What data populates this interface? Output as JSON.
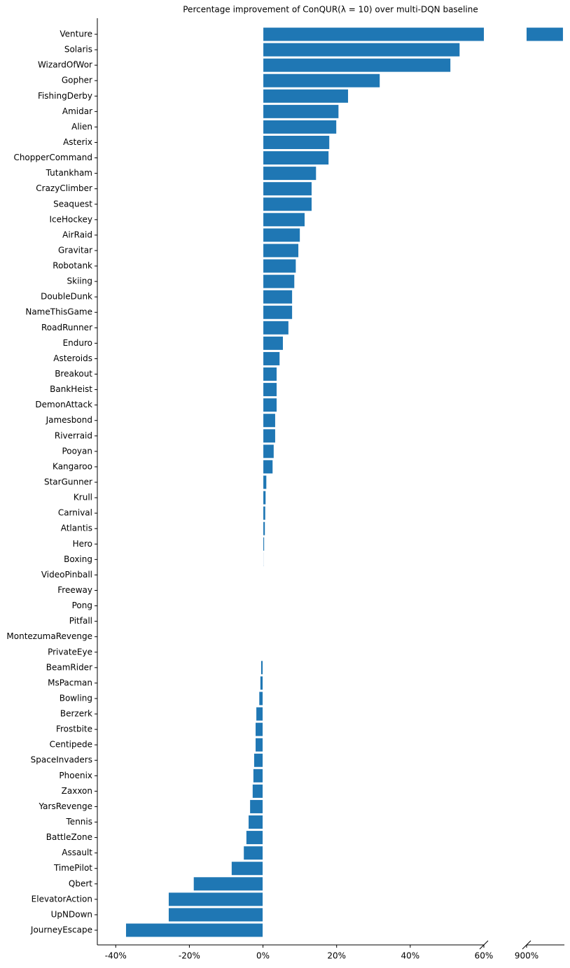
{
  "chart_data": {
    "type": "barh",
    "title": "Percentage improvement of ConQUR(λ = 10) over multi-DQN baseline",
    "categories": [
      "Venture",
      "Solaris",
      "WizardOfWor",
      "Gopher",
      "FishingDerby",
      "Amidar",
      "Alien",
      "Asterix",
      "ChopperCommand",
      "Tutankham",
      "CrazyClimber",
      "Seaquest",
      "IceHockey",
      "AirRaid",
      "Gravitar",
      "Robotank",
      "Skiing",
      "DoubleDunk",
      "NameThisGame",
      "RoadRunner",
      "Enduro",
      "Asteroids",
      "Breakout",
      "BankHeist",
      "DemonAttack",
      "Jamesbond",
      "Riverraid",
      "Pooyan",
      "Kangaroo",
      "StarGunner",
      "Krull",
      "Carnival",
      "Atlantis",
      "Hero",
      "Boxing",
      "VideoPinball",
      "Freeway",
      "Pong",
      "Pitfall",
      "MontezumaRevenge",
      "PrivateEye",
      "BeamRider",
      "MsPacman",
      "Bowling",
      "Berzerk",
      "Frostbite",
      "Centipede",
      "SpaceInvaders",
      "Phoenix",
      "Zaxxon",
      "YarsRevenge",
      "Tennis",
      "BattleZone",
      "Assault",
      "TimePilot",
      "Qbert",
      "ElevatorAction",
      "UpNDown",
      "JourneyEscape"
    ],
    "values": [
      910,
      53.5,
      51,
      31.8,
      23.2,
      20.6,
      20,
      18.1,
      17.9,
      14.5,
      13.3,
      13.3,
      11.4,
      10.1,
      9.7,
      9.0,
      8.6,
      8.0,
      8.0,
      7.0,
      5.5,
      4.6,
      3.8,
      3.8,
      3.8,
      3.4,
      3.4,
      3.0,
      2.7,
      1.0,
      0.8,
      0.7,
      0.6,
      0.4,
      0.2,
      0.1,
      0.05,
      0.05,
      0,
      0,
      0,
      -0.6,
      -0.8,
      -1.1,
      -1.9,
      -2.1,
      -2.1,
      -2.5,
      -2.7,
      -2.9,
      -3.6,
      -4.0,
      -4.6,
      -5.3,
      -8.6,
      -18.9,
      -25.7,
      -25.7,
      -37.3
    ],
    "color": "#1f77b4",
    "xlim": [
      -45,
      60
    ],
    "xticks": [
      {
        "value": -40,
        "label": "-40%"
      },
      {
        "value": -20,
        "label": "-20%"
      },
      {
        "value": 0,
        "label": "0%"
      },
      {
        "value": 20,
        "label": "20%"
      },
      {
        "value": 40,
        "label": "40%"
      },
      {
        "value": 60,
        "label": "60%"
      }
    ],
    "x2lim": [
      900,
      910.3
    ],
    "x2ticks": [
      {
        "value": 900,
        "label": "900%"
      }
    ]
  }
}
